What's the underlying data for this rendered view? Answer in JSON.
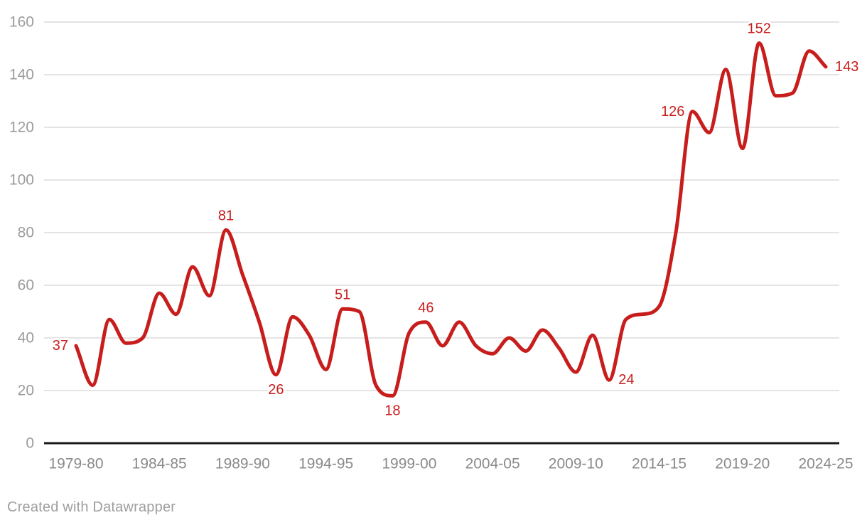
{
  "chart_data": {
    "type": "line",
    "title": "",
    "xlabel": "",
    "ylabel": "",
    "categories": [
      "1979-80",
      "1980-81",
      "1981-82",
      "1982-83",
      "1983-84",
      "1984-85",
      "1985-86",
      "1986-87",
      "1987-88",
      "1988-89",
      "1989-90",
      "1990-91",
      "1991-92",
      "1992-93",
      "1993-94",
      "1994-95",
      "1995-96",
      "1996-97",
      "1997-98",
      "1998-99",
      "1999-00",
      "2000-01",
      "2001-02",
      "2002-03",
      "2003-04",
      "2004-05",
      "2005-06",
      "2006-07",
      "2007-08",
      "2008-09",
      "2009-10",
      "2010-11",
      "2011-12",
      "2012-13",
      "2013-14",
      "2014-15",
      "2015-16",
      "2016-17",
      "2017-18",
      "2018-19",
      "2019-20",
      "2020-21",
      "2021-22",
      "2022-23",
      "2023-24",
      "2024-25"
    ],
    "values": [
      37,
      22,
      47,
      38,
      40,
      57,
      49,
      67,
      56,
      81,
      64,
      46,
      26,
      48,
      41,
      28,
      51,
      50,
      22,
      18,
      42,
      46,
      37,
      46,
      37,
      34,
      40,
      35,
      43,
      36,
      27,
      41,
      24,
      47,
      49,
      52,
      80,
      126,
      118,
      142,
      112,
      152,
      132,
      133,
      149,
      143
    ],
    "ylim": [
      0,
      160
    ],
    "yticks": [
      0,
      20,
      40,
      60,
      80,
      100,
      120,
      140,
      160
    ],
    "xtick_labels": [
      "1979-80",
      "1984-85",
      "1989-90",
      "1994-95",
      "1999-00",
      "2004-05",
      "2009-10",
      "2014-15",
      "2019-20",
      "2024-25"
    ],
    "grid": "horizontal",
    "legend": "none",
    "point_labels": [
      {
        "category": "1979-80",
        "value": 37,
        "placement": "left"
      },
      {
        "category": "1988-89",
        "value": 81,
        "placement": "above"
      },
      {
        "category": "1991-92",
        "value": 26,
        "placement": "below"
      },
      {
        "category": "1995-96",
        "value": 51,
        "placement": "above"
      },
      {
        "category": "1998-99",
        "value": 18,
        "placement": "below"
      },
      {
        "category": "2000-01",
        "value": 46,
        "placement": "above"
      },
      {
        "category": "2011-12",
        "value": 24,
        "placement": "right"
      },
      {
        "category": "2016-17",
        "value": 126,
        "placement": "left"
      },
      {
        "category": "2020-21",
        "value": 152,
        "placement": "above"
      },
      {
        "category": "2024-25",
        "value": 143,
        "placement": "right"
      }
    ]
  },
  "colors": {
    "line": "#c71e1d",
    "point_label": "#c71e1d",
    "grid": "#e4e4e4",
    "axis_line": "#191919",
    "y_tick_label": "#9b9b9b",
    "x_tick_label": "#8a8a8a",
    "background": "#ffffff"
  },
  "footer": {
    "credit": "Created with Datawrapper"
  }
}
